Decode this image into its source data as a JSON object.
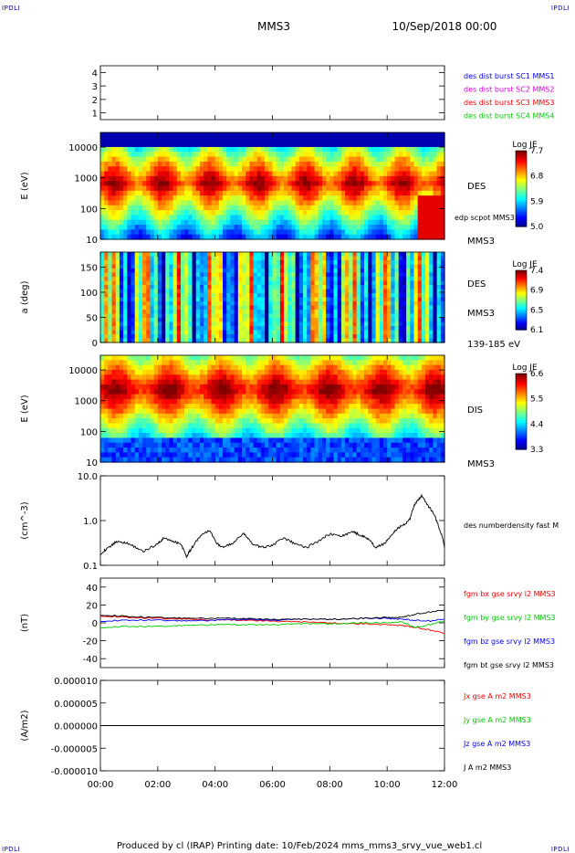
{
  "header": {
    "corner_tl": "IPDLI",
    "corner_tr": "IPDLI",
    "corner_bl": "IPDLI",
    "corner_br": "IPDLI",
    "spacecraft": "MMS3",
    "date": "10/Sep/2018 00:00"
  },
  "footer": {
    "text": "Produced by cl (IRAP)   Printing date: 10/Feb/2024   mms_mms3_srvy_vue_web1.cl"
  },
  "colors": {
    "red": "#ff0000",
    "green": "#00cc00",
    "blue": "#0000ff",
    "magenta": "#dd00dd",
    "black": "#000000"
  },
  "chart_data": [
    {
      "id": "burst",
      "type": "line",
      "ylim": [
        0.5,
        4.5
      ],
      "ylabel": "",
      "yticks": [
        1,
        2,
        3,
        4
      ],
      "ytick_labels": [
        "1",
        "2",
        "3",
        "4"
      ],
      "legend": [
        {
          "text": "des dist burst SC1 MMS1",
          "color": "#0000ff"
        },
        {
          "text": "des dist burst SC2 MMS2",
          "color": "#dd00dd"
        },
        {
          "text": "des dist burst SC3 MMS3",
          "color": "#ff0000"
        },
        {
          "text": "des dist burst SC4 MMS4",
          "color": "#00cc00"
        }
      ]
    },
    {
      "id": "des_energy",
      "type": "heatmap",
      "ylabel": "E (eV)",
      "ylog": true,
      "ylim": [
        10,
        30000
      ],
      "yticks": [
        10,
        100,
        1000,
        10000
      ],
      "ytick_labels": [
        "10",
        "100",
        "1000",
        "10000"
      ],
      "right_labels": [
        "DES",
        "edp scpot MMS3",
        "MMS3"
      ],
      "colorbar": {
        "title": "Log JE",
        "ticks": [
          "7.7",
          "6.8",
          "5.9",
          "5.0"
        ],
        "min": 5.0,
        "max": 7.9
      }
    },
    {
      "id": "des_pitch",
      "type": "heatmap",
      "ylabel": "a (deg)",
      "ylim": [
        0,
        180
      ],
      "yticks": [
        0,
        50,
        100,
        150
      ],
      "ytick_labels": [
        "0",
        "50",
        "100",
        "150"
      ],
      "right_labels": [
        "DES",
        "MMS3",
        "139-185 eV"
      ],
      "colorbar": {
        "title": "Log JE",
        "ticks": [
          "7.4",
          "6.9",
          "6.5",
          "6.1"
        ],
        "min": 6.1,
        "max": 7.6
      }
    },
    {
      "id": "dis_energy",
      "type": "heatmap",
      "ylabel": "E (eV)",
      "ylog": true,
      "ylim": [
        10,
        30000
      ],
      "yticks": [
        10,
        100,
        1000,
        10000
      ],
      "ytick_labels": [
        "10",
        "100",
        "1000",
        "10000"
      ],
      "right_labels": [
        "DIS",
        "MMS3"
      ],
      "colorbar": {
        "title": "Log JE",
        "ticks": [
          "6.6",
          "5.5",
          "4.4",
          "3.3"
        ],
        "min": 3.3,
        "max": 6.8
      }
    },
    {
      "id": "density",
      "type": "line",
      "ylabel": "(cm^-3)",
      "ylog": true,
      "ylim": [
        0.1,
        10
      ],
      "yticks": [
        0.1,
        1,
        10
      ],
      "ytick_labels": [
        "0.1",
        "1.0",
        "10.0"
      ],
      "legend": [
        {
          "text": "des numberdensity fast M",
          "color": "#000000"
        }
      ],
      "series": [
        {
          "name": "des numberdensity fast M",
          "color": "#000000",
          "x": [
            0,
            0.3,
            0.6,
            1.0,
            1.5,
            2.0,
            2.2,
            2.5,
            2.8,
            3.0,
            3.2,
            3.5,
            3.8,
            4.0,
            4.2,
            4.6,
            5.0,
            5.3,
            5.6,
            6.0,
            6.4,
            6.8,
            7.2,
            7.6,
            8.0,
            8.4,
            8.8,
            9.0,
            9.3,
            9.6,
            9.9,
            10.2,
            10.4,
            10.6,
            10.8,
            11.0,
            11.2,
            11.4,
            11.6,
            11.8,
            12.0
          ],
          "y": [
            0.18,
            0.25,
            0.35,
            0.3,
            0.2,
            0.3,
            0.4,
            0.35,
            0.3,
            0.15,
            0.25,
            0.45,
            0.6,
            0.35,
            0.25,
            0.3,
            0.5,
            0.3,
            0.25,
            0.28,
            0.4,
            0.3,
            0.25,
            0.35,
            0.5,
            0.45,
            0.55,
            0.5,
            0.4,
            0.25,
            0.3,
            0.5,
            0.7,
            0.8,
            1.1,
            2.5,
            3.5,
            2.2,
            1.5,
            0.7,
            0.25
          ]
        }
      ]
    },
    {
      "id": "b_field",
      "type": "line",
      "ylabel": "(nT)",
      "ylim": [
        -50,
        50
      ],
      "yticks": [
        -40,
        -20,
        0,
        20,
        40
      ],
      "ytick_labels": [
        "-40",
        "-20",
        "0",
        "20",
        "40"
      ],
      "legend": [
        {
          "text": "fgm bx gse srvy l2 MMS3",
          "color": "#ff0000"
        },
        {
          "text": "fgm by gse srvy l2 MMS3",
          "color": "#00cc00"
        },
        {
          "text": "fgm bz gse srvy l2 MMS3",
          "color": "#0000ff"
        },
        {
          "text": "fgm bt gse srvy l2 MMS3",
          "color": "#000000"
        }
      ],
      "series": [
        {
          "name": "fgm bx gse srvy l2 MMS3",
          "color": "#ff0000",
          "x": [
            0,
            1,
            2,
            3,
            4,
            5,
            6,
            7,
            8,
            9,
            10,
            10.5,
            11,
            11.5,
            12
          ],
          "y": [
            8,
            6,
            5,
            4,
            3,
            3,
            2,
            1,
            0,
            -1,
            -2,
            -3,
            -5,
            -8,
            -12
          ]
        },
        {
          "name": "fgm by gse srvy l2 MMS3",
          "color": "#00cc00",
          "x": [
            0,
            1,
            2,
            3,
            4,
            5,
            6,
            7,
            8,
            9,
            10,
            10.5,
            11,
            11.5,
            12
          ],
          "y": [
            -5,
            -4,
            -4,
            -3,
            -2,
            -2,
            -2,
            -1,
            -1,
            0,
            0,
            1,
            -5,
            -2,
            2
          ]
        },
        {
          "name": "fgm bz gse srvy l2 MMS3",
          "color": "#0000ff",
          "x": [
            0,
            1,
            2,
            3,
            4,
            5,
            6,
            7,
            8,
            9,
            10,
            10.5,
            11,
            11.5,
            12
          ],
          "y": [
            2,
            3,
            3,
            2,
            3,
            4,
            3,
            4,
            4,
            5,
            5,
            4,
            3,
            2,
            4
          ]
        },
        {
          "name": "fgm bt gse srvy l2 MMS3",
          "color": "#000000",
          "x": [
            0,
            1,
            2,
            3,
            4,
            5,
            6,
            7,
            8,
            9,
            10,
            10.5,
            11,
            11.5,
            12
          ],
          "y": [
            9,
            7,
            6,
            5,
            5,
            5,
            4,
            4,
            4,
            5,
            6,
            6,
            10,
            12,
            14
          ]
        }
      ]
    },
    {
      "id": "current",
      "type": "line",
      "ylabel": "(A/m2)",
      "ylim": [
        -1e-05,
        1e-05
      ],
      "yticks": [
        -1e-05,
        -5e-06,
        0,
        5e-06,
        1e-05
      ],
      "ytick_labels": [
        "-0.000010",
        "-0.000005",
        "0.000000",
        "0.000005",
        "0.000010"
      ],
      "legend": [
        {
          "text": "Jx gse A m2 MMS3",
          "color": "#ff0000"
        },
        {
          "text": "Jy gse A m2 MMS3",
          "color": "#00cc00"
        },
        {
          "text": "Jz gse A m2 MMS3",
          "color": "#0000ff"
        },
        {
          "text": "J A m2 MMS3",
          "color": "#000000"
        }
      ],
      "series": [
        {
          "name": "J A m2 MMS3",
          "color": "#000000",
          "x": [
            0,
            12
          ],
          "y": [
            0,
            0
          ]
        }
      ]
    }
  ],
  "x_axis": {
    "ticks": [
      0,
      2,
      4,
      6,
      8,
      10,
      12
    ],
    "tick_labels": [
      "00:00",
      "02:00",
      "04:00",
      "06:00",
      "08:00",
      "10:00",
      "12:00"
    ],
    "xlim": [
      0,
      12
    ]
  }
}
